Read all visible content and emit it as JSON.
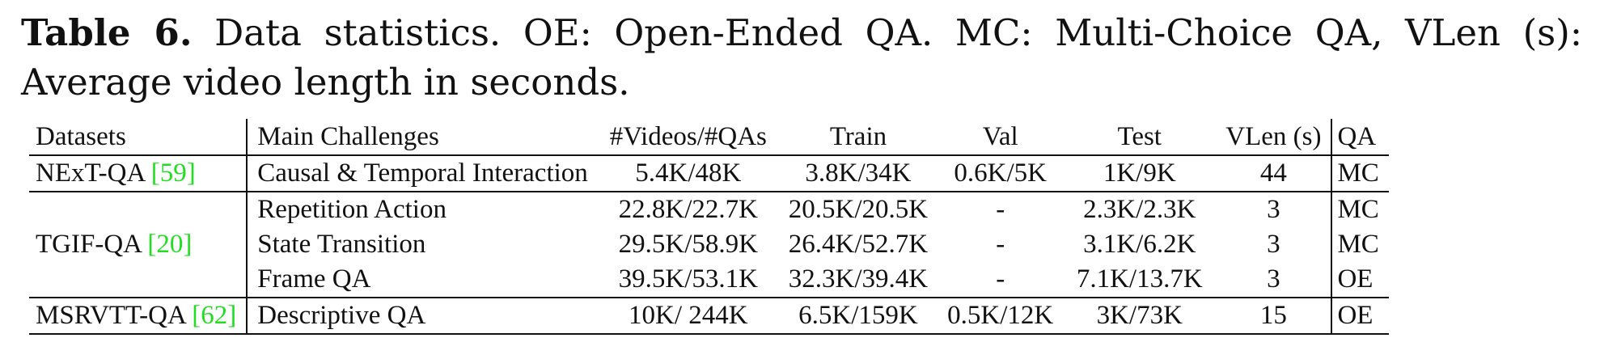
{
  "caption": {
    "label": "Table 6.",
    "text": " Data statistics. OE: Open-Ended QA. MC: Multi-Choice QA, VLen (s): Average video length in seconds."
  },
  "table": {
    "headers": [
      "Datasets",
      "Main Challenges",
      "#Videos/#QAs",
      "Train",
      "Val",
      "Test",
      "VLen (s)",
      "QA"
    ],
    "groups": [
      {
        "dataset": "NExT-QA",
        "cite": "[59]",
        "rows": [
          {
            "challenge": "Causal & Temporal Interaction",
            "videos_qas": "5.4K/48K",
            "train": "3.8K/34K",
            "val": "0.6K/5K",
            "test": "1K/9K",
            "vlen": "44",
            "qa": "MC"
          }
        ]
      },
      {
        "dataset": "TGIF-QA",
        "cite": "[20]",
        "rows": [
          {
            "challenge": "Repetition Action",
            "videos_qas": "22.8K/22.7K",
            "train": "20.5K/20.5K",
            "val": "-",
            "test": "2.3K/2.3K",
            "vlen": "3",
            "qa": "MC"
          },
          {
            "challenge": "State Transition",
            "videos_qas": "29.5K/58.9K",
            "train": "26.4K/52.7K",
            "val": "-",
            "test": "3.1K/6.2K",
            "vlen": "3",
            "qa": "MC"
          },
          {
            "challenge": "Frame QA",
            "videos_qas": "39.5K/53.1K",
            "train": "32.3K/39.4K",
            "val": "-",
            "test": "7.1K/13.7K",
            "vlen": "3",
            "qa": "OE"
          }
        ]
      },
      {
        "dataset": "MSRVTT-QA",
        "cite": "[62]",
        "rows": [
          {
            "challenge": "Descriptive QA",
            "videos_qas": "10K/ 244K",
            "train": "6.5K/159K",
            "val": "0.5K/12K",
            "test": "3K/73K",
            "vlen": "15",
            "qa": "OE"
          }
        ]
      }
    ]
  }
}
